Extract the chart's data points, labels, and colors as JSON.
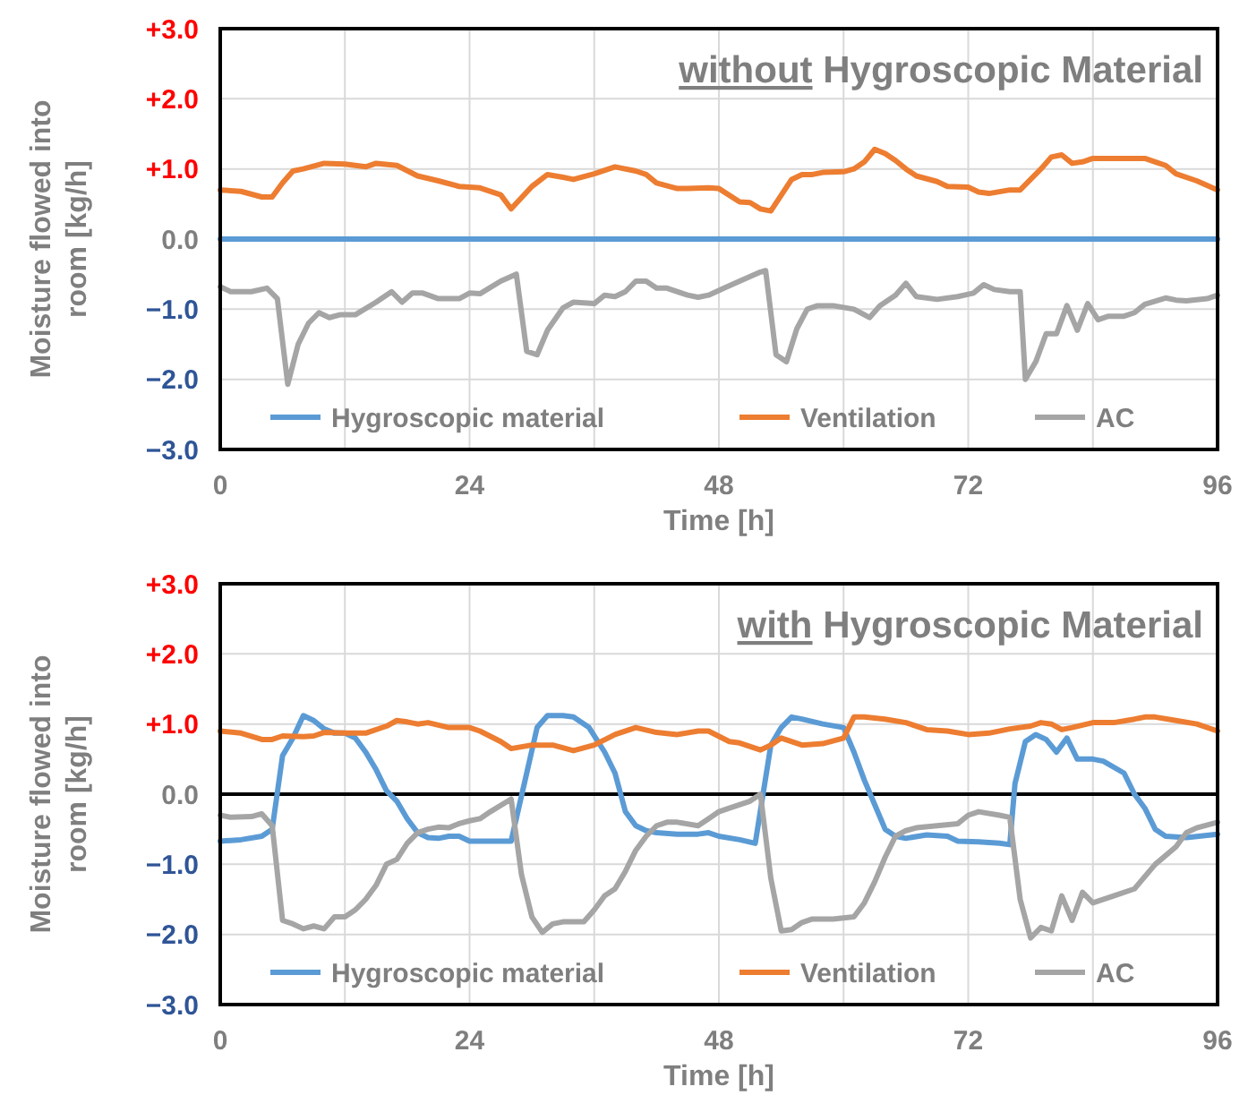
{
  "chart_data": [
    {
      "type": "line",
      "title": "without Hygroscopic Material",
      "xlabel": "Time [h]",
      "ylabel": "Moisture flowed into room [kg/h]",
      "xlim": [
        0,
        96
      ],
      "ylim": [
        -3,
        3
      ],
      "xticks": [
        0,
        {
          "value": 12,
          "label": null
        },
        24,
        {
          "value": 36,
          "label": null
        },
        48,
        {
          "value": 60,
          "label": null
        },
        72,
        {
          "value": 84,
          "label": null
        },
        96
      ],
      "yticks": [
        {
          "value": 3,
          "label": "+3.0"
        },
        {
          "value": 2,
          "label": "+2.0"
        },
        {
          "value": 1,
          "label": "+1.0"
        },
        {
          "value": 0,
          "label": "0.0"
        },
        {
          "value": -1,
          "label": "−1.0"
        },
        {
          "value": -2,
          "label": "−2.0"
        },
        {
          "value": -3,
          "label": "−3.0"
        }
      ],
      "grid": true,
      "legend": "bottom",
      "marker": "none",
      "line_style": "solid",
      "series": [
        {
          "name": "Hygroscopic material",
          "color": "#5b9bd5",
          "x": [
            0,
            96
          ],
          "values": [
            0,
            0
          ]
        },
        {
          "name": "Ventilation",
          "color": "#ed7d31",
          "x": [
            0,
            2,
            4,
            5,
            6,
            7,
            8,
            10,
            12,
            14,
            15,
            17,
            19,
            21,
            23,
            25,
            27,
            28,
            30,
            31.5,
            33,
            34,
            36,
            38,
            40,
            41,
            42,
            44,
            45,
            47,
            48,
            50,
            51,
            52,
            53,
            55,
            56,
            57,
            58,
            60,
            61,
            62,
            63,
            64,
            65,
            66,
            67,
            69,
            70,
            72,
            73,
            74,
            76,
            77,
            79,
            80,
            81,
            82,
            83,
            84,
            86,
            88,
            89,
            90,
            91,
            92,
            94,
            96
          ],
          "values": [
            0.7,
            0.68,
            0.6,
            0.6,
            0.8,
            0.97,
            1.0,
            1.08,
            1.07,
            1.03,
            1.08,
            1.05,
            0.9,
            0.83,
            0.75,
            0.73,
            0.63,
            0.43,
            0.75,
            0.92,
            0.88,
            0.85,
            0.93,
            1.03,
            0.97,
            0.92,
            0.8,
            0.72,
            0.72,
            0.73,
            0.72,
            0.53,
            0.52,
            0.43,
            0.4,
            0.85,
            0.92,
            0.92,
            0.95,
            0.96,
            1.0,
            1.1,
            1.28,
            1.22,
            1.12,
            1.0,
            0.9,
            0.82,
            0.75,
            0.74,
            0.67,
            0.65,
            0.7,
            0.7,
            1.0,
            1.17,
            1.2,
            1.08,
            1.1,
            1.15,
            1.15,
            1.15,
            1.15,
            1.1,
            1.05,
            0.93,
            0.83,
            0.7
          ]
        },
        {
          "name": "AC",
          "color": "#a5a5a5",
          "x": [
            0,
            1,
            3,
            4.5,
            5.5,
            6.5,
            7.5,
            8.5,
            9.5,
            10.5,
            11.5,
            13,
            15,
            16.5,
            17.5,
            18.5,
            19.5,
            21,
            23,
            24,
            25,
            27,
            28.5,
            29.5,
            30.5,
            31.5,
            33,
            34,
            36,
            37,
            38,
            39,
            40,
            41,
            42,
            43,
            45,
            46,
            47,
            48.5,
            50,
            52,
            52.5,
            53.5,
            54.5,
            55.5,
            56.5,
            57.5,
            59,
            61,
            62.5,
            63.5,
            65,
            66,
            67,
            69,
            71,
            72.5,
            73.5,
            74.5,
            76,
            77,
            77.5,
            78.5,
            79.5,
            80.5,
            81.5,
            82.5,
            83.5,
            84.5,
            85.5,
            87,
            88,
            89,
            91,
            92,
            93,
            95,
            96
          ],
          "values": [
            -0.68,
            -0.75,
            -0.75,
            -0.7,
            -0.85,
            -2.07,
            -1.5,
            -1.2,
            -1.05,
            -1.12,
            -1.08,
            -1.08,
            -0.9,
            -0.75,
            -0.9,
            -0.77,
            -0.77,
            -0.85,
            -0.85,
            -0.77,
            -0.78,
            -0.6,
            -0.5,
            -1.6,
            -1.65,
            -1.3,
            -0.98,
            -0.9,
            -0.92,
            -0.8,
            -0.82,
            -0.75,
            -0.6,
            -0.6,
            -0.7,
            -0.7,
            -0.8,
            -0.83,
            -0.8,
            -0.7,
            -0.6,
            -0.47,
            -0.45,
            -1.65,
            -1.75,
            -1.28,
            -1.0,
            -0.95,
            -0.95,
            -1.0,
            -1.12,
            -0.95,
            -0.8,
            -0.63,
            -0.82,
            -0.86,
            -0.82,
            -0.77,
            -0.65,
            -0.72,
            -0.75,
            -0.75,
            -2.0,
            -1.75,
            -1.35,
            -1.35,
            -0.95,
            -1.3,
            -0.92,
            -1.15,
            -1.1,
            -1.1,
            -1.05,
            -0.93,
            -0.84,
            -0.87,
            -0.88,
            -0.85,
            -0.8
          ]
        }
      ]
    },
    {
      "type": "line",
      "title": "with Hygroscopic Material",
      "xlabel": "Time [h]",
      "ylabel": "Moisture flowed into room [kg/h]",
      "xlim": [
        0,
        96
      ],
      "ylim": [
        -3,
        3
      ],
      "xticks": [
        0,
        {
          "value": 12,
          "label": null
        },
        24,
        {
          "value": 36,
          "label": null
        },
        48,
        {
          "value": 60,
          "label": null
        },
        72,
        {
          "value": 84,
          "label": null
        },
        96
      ],
      "yticks": [
        {
          "value": 3,
          "label": "+3.0"
        },
        {
          "value": 2,
          "label": "+2.0"
        },
        {
          "value": 1,
          "label": "+1.0"
        },
        {
          "value": 0,
          "label": "0.0"
        },
        {
          "value": -1,
          "label": "−1.0"
        },
        {
          "value": -2,
          "label": "−2.0"
        },
        {
          "value": -3,
          "label": "−3.0"
        }
      ],
      "grid": true,
      "legend": "bottom",
      "marker": "none",
      "line_style": "solid",
      "ref_lines": [
        {
          "axis": "y",
          "value": 0,
          "color": "#000000"
        }
      ],
      "series": [
        {
          "name": "Hygroscopic material",
          "color": "#5b9bd5",
          "x": [
            0,
            2,
            4,
            5,
            6,
            7,
            8,
            9,
            10,
            11,
            12,
            13,
            14,
            15,
            16,
            17,
            18,
            19,
            20,
            21,
            22,
            23,
            24,
            26,
            28,
            29.5,
            30.5,
            31.5,
            33,
            34,
            35.5,
            37,
            38,
            39,
            40,
            41,
            42,
            44,
            46,
            47,
            48,
            50,
            51.5,
            53,
            54,
            55,
            56,
            58,
            60,
            61,
            62,
            63,
            64,
            65,
            66,
            68,
            70,
            71,
            73,
            75,
            76,
            76.5,
            77.5,
            78.5,
            79.5,
            80.5,
            81.5,
            82.5,
            84,
            85,
            87,
            88,
            89,
            90,
            91,
            93,
            96
          ],
          "values": [
            -0.67,
            -0.65,
            -0.6,
            -0.5,
            0.55,
            0.8,
            1.12,
            1.05,
            0.93,
            0.87,
            0.87,
            0.8,
            0.6,
            0.35,
            0.05,
            -0.1,
            -0.35,
            -0.55,
            -0.62,
            -0.63,
            -0.6,
            -0.6,
            -0.67,
            -0.67,
            -0.67,
            0.3,
            0.95,
            1.12,
            1.12,
            1.1,
            0.95,
            0.6,
            0.3,
            -0.25,
            -0.45,
            -0.52,
            -0.55,
            -0.57,
            -0.57,
            -0.55,
            -0.6,
            -0.65,
            -0.7,
            0.7,
            0.95,
            1.1,
            1.07,
            1.0,
            0.95,
            0.6,
            0.2,
            -0.15,
            -0.5,
            -0.6,
            -0.63,
            -0.58,
            -0.6,
            -0.67,
            -0.68,
            -0.7,
            -0.72,
            0.15,
            0.75,
            0.85,
            0.78,
            0.6,
            0.8,
            0.5,
            0.5,
            0.47,
            0.3,
            0,
            -0.2,
            -0.5,
            -0.6,
            -0.62,
            -0.57
          ]
        },
        {
          "name": "Ventilation",
          "color": "#ed7d31",
          "x": [
            0,
            2,
            4,
            5,
            6,
            8,
            9,
            10,
            12,
            14,
            16,
            17,
            18,
            19,
            20,
            22,
            24,
            25,
            27,
            28,
            30,
            32,
            34,
            36,
            38,
            40,
            42,
            44,
            46,
            47,
            49,
            50,
            52,
            53,
            54,
            56,
            58,
            60,
            61,
            62,
            64,
            66,
            68,
            70,
            72,
            74,
            76,
            78,
            79,
            80,
            81,
            82,
            84,
            86,
            88,
            89,
            90,
            92,
            94,
            96
          ],
          "values": [
            0.9,
            0.87,
            0.78,
            0.78,
            0.83,
            0.82,
            0.83,
            0.88,
            0.87,
            0.87,
            0.97,
            1.05,
            1.03,
            1.0,
            1.02,
            0.95,
            0.95,
            0.9,
            0.75,
            0.65,
            0.7,
            0.7,
            0.62,
            0.7,
            0.85,
            0.95,
            0.88,
            0.85,
            0.9,
            0.9,
            0.75,
            0.73,
            0.63,
            0.7,
            0.8,
            0.7,
            0.72,
            0.8,
            1.1,
            1.1,
            1.07,
            1.02,
            0.92,
            0.9,
            0.85,
            0.87,
            0.93,
            0.97,
            1.02,
            1.0,
            0.92,
            0.95,
            1.02,
            1.02,
            1.07,
            1.1,
            1.1,
            1.05,
            1.0,
            0.9
          ]
        },
        {
          "name": "AC",
          "color": "#a5a5a5",
          "x": [
            0,
            1,
            3,
            4,
            5,
            6,
            7,
            8,
            9,
            10,
            11,
            12,
            13,
            14,
            15,
            16,
            17,
            18,
            19,
            20,
            21,
            22,
            23,
            24,
            25,
            26,
            28,
            29,
            30,
            31,
            32,
            33,
            35,
            36,
            37,
            38,
            39,
            40,
            41,
            42,
            43,
            44,
            46,
            47,
            48,
            49,
            51,
            52,
            53,
            54,
            55,
            56,
            57,
            59,
            61,
            62,
            63,
            64,
            65,
            66,
            67,
            69,
            71,
            72,
            73,
            75,
            76,
            77,
            78,
            79,
            80,
            81,
            82,
            83,
            84,
            86,
            88,
            90,
            92,
            93,
            94,
            96
          ],
          "values": [
            -0.3,
            -0.33,
            -0.32,
            -0.28,
            -0.45,
            -1.8,
            -1.85,
            -1.92,
            -1.88,
            -1.92,
            -1.75,
            -1.75,
            -1.65,
            -1.5,
            -1.3,
            -1.0,
            -0.93,
            -0.7,
            -0.55,
            -0.5,
            -0.47,
            -0.48,
            -0.42,
            -0.38,
            -0.35,
            -0.25,
            -0.07,
            -1.15,
            -1.75,
            -1.97,
            -1.85,
            -1.82,
            -1.82,
            -1.65,
            -1.45,
            -1.35,
            -1.1,
            -0.8,
            -0.6,
            -0.45,
            -0.4,
            -0.4,
            -0.45,
            -0.35,
            -0.25,
            -0.2,
            -0.1,
            0,
            -1.2,
            -1.95,
            -1.93,
            -1.83,
            -1.78,
            -1.78,
            -1.75,
            -1.55,
            -1.25,
            -0.9,
            -0.6,
            -0.52,
            -0.48,
            -0.45,
            -0.42,
            -0.3,
            -0.25,
            -0.3,
            -0.33,
            -1.5,
            -2.05,
            -1.9,
            -1.95,
            -1.45,
            -1.8,
            -1.4,
            -1.55,
            -1.45,
            -1.35,
            -1.0,
            -0.75,
            -0.55,
            -0.48,
            -0.4
          ]
        }
      ]
    }
  ]
}
